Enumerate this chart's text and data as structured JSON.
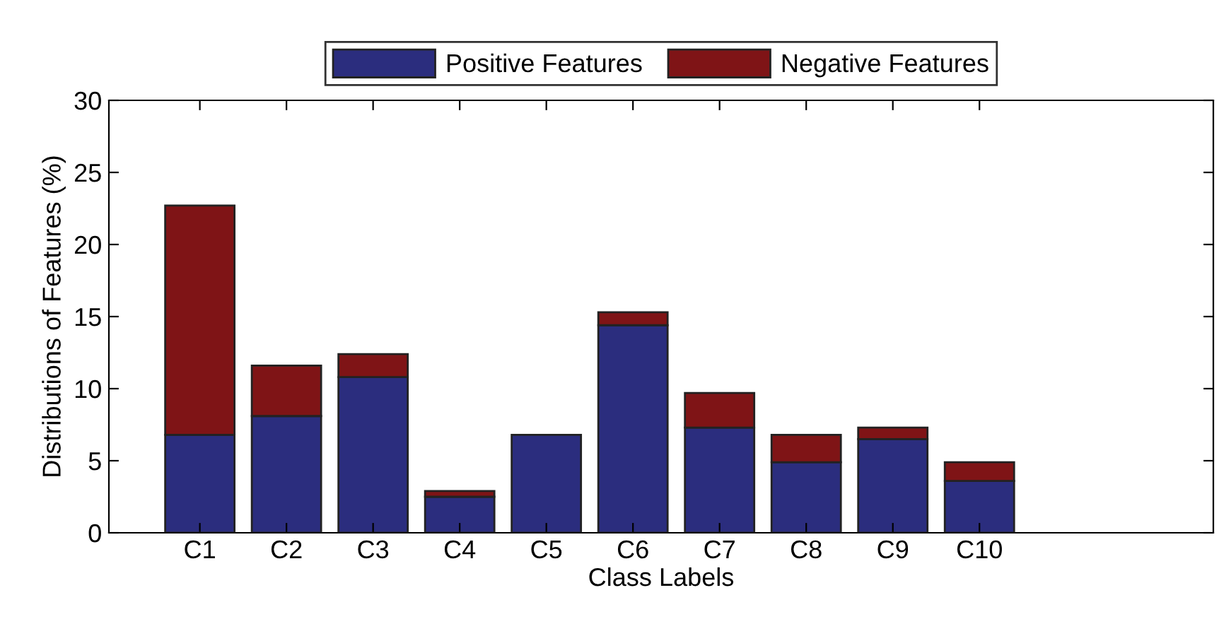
{
  "chart_data": {
    "type": "bar",
    "stacked": true,
    "xlabel": "Class Labels",
    "ylabel": "Distributions of Features (%)",
    "categories": [
      "C1",
      "C2",
      "C3",
      "C4",
      "C5",
      "C6",
      "C7",
      "C8",
      "C9",
      "C10"
    ],
    "series": [
      {
        "name": "Positive Features",
        "color": "#2b2d7e",
        "values": [
          6.8,
          8.1,
          10.8,
          2.5,
          6.8,
          14.4,
          7.3,
          4.9,
          6.5,
          3.6
        ]
      },
      {
        "name": "Negative Features",
        "color": "#7f1416",
        "values": [
          15.9,
          3.5,
          1.6,
          0.4,
          null,
          0.9,
          2.4,
          1.9,
          0.8,
          1.3
        ]
      }
    ],
    "ylim": [
      0,
      30
    ],
    "yticks": [
      0,
      5,
      10,
      15,
      20,
      25,
      30
    ],
    "grid": false,
    "legend": "top"
  }
}
